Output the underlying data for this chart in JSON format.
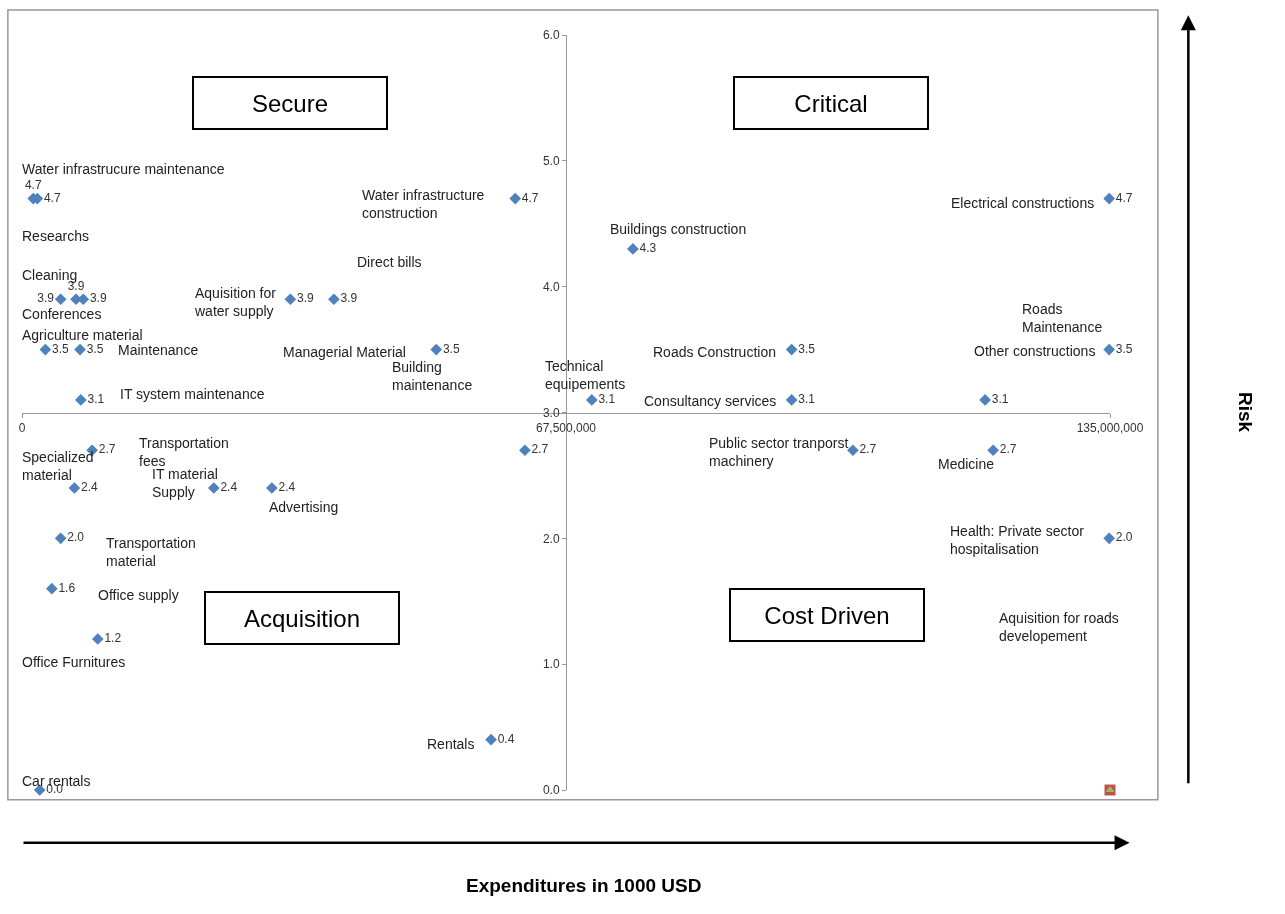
{
  "chart_data": {
    "type": "scatter",
    "xlabel": "Expenditures in 1000 USD",
    "ylabel": "Risk",
    "x": [
      1400000,
      1900000,
      61200000,
      4800000,
      6700000,
      7600000,
      33300000,
      38700000,
      2900000,
      7200000,
      51400000,
      7300000,
      8700000,
      62400000,
      6500000,
      23800000,
      31000000,
      4800000,
      3700000,
      9400000,
      58200000,
      2200000,
      75800000,
      95500000,
      134900000,
      134900000,
      119500000,
      70700000,
      95500000,
      103100000,
      120500000,
      134900000,
      135000000
    ],
    "series": [
      {
        "color": "#4f81bd",
        "marker": "diamond",
        "values": [
          4.7,
          4.7,
          4.7,
          3.9,
          3.9,
          3.9,
          3.9,
          3.9,
          3.5,
          3.5,
          3.5,
          3.1,
          2.7,
          2.7,
          2.4,
          2.4,
          2.4,
          2.0,
          1.6,
          1.2,
          0.4,
          0.0,
          4.3,
          3.5,
          4.7,
          3.5,
          3.1,
          3.1,
          3.1,
          2.7,
          2.7,
          2.0,
          null
        ],
        "value_labels": [
          "4.7",
          "4.7",
          "4.7",
          "3.9",
          "3.9",
          "3.9",
          "3.9",
          "3.9",
          "3.5",
          "3.5",
          "3.5",
          "3.1",
          "2.7",
          "2.7",
          "2.4",
          "2.4",
          "2.4",
          "2.0",
          "1.6",
          "1.2",
          "0.4",
          "0.0",
          "4.3",
          "3.5",
          "4.7",
          "3.5",
          "3.1",
          "3.1",
          "3.1",
          "2.7",
          "2.7",
          "2.0",
          null
        ]
      },
      {
        "color": "#c0504d",
        "marker": "square",
        "values": [
          null,
          null,
          null,
          null,
          null,
          null,
          null,
          null,
          null,
          null,
          null,
          null,
          null,
          null,
          null,
          null,
          null,
          null,
          null,
          null,
          null,
          null,
          null,
          null,
          null,
          null,
          null,
          null,
          null,
          null,
          null,
          null,
          0.0
        ]
      },
      {
        "color": "#9bbb59",
        "marker": "triangle",
        "values": [
          null,
          null,
          null,
          null,
          null,
          null,
          null,
          null,
          null,
          null,
          null,
          null,
          null,
          null,
          null,
          null,
          null,
          null,
          null,
          null,
          null,
          null,
          null,
          null,
          null,
          null,
          null,
          null,
          null,
          null,
          null,
          null,
          0.0
        ]
      }
    ],
    "xlim": [
      0,
      135000000
    ],
    "xticks": [
      0,
      {
        "value": 67500000,
        "label": "67,500,000"
      },
      {
        "value": 135000000,
        "label": "135,000,000"
      }
    ],
    "ylim": [
      0,
      6
    ],
    "yticks": [
      {
        "value": 0,
        "label": "0.0"
      },
      {
        "value": 1,
        "label": "1.0"
      },
      {
        "value": 2,
        "label": "2.0"
      },
      {
        "value": 3,
        "label": "3.0"
      },
      {
        "value": 4,
        "label": "4.0"
      },
      {
        "value": 5,
        "label": "5.0"
      },
      {
        "value": 6,
        "label": "6.0"
      }
    ],
    "annotations": [
      {
        "text": "Water infrastrucure maintenance",
        "x": 1400000,
        "y": 4.7
      },
      {
        "text": "Researchs",
        "x": 1900000,
        "y": 4.7
      },
      {
        "text": "Water infrastructure\nconstruction",
        "x": 61200000,
        "y": 4.7
      },
      {
        "text": "Cleaning",
        "x": 4800000,
        "y": 3.9
      },
      {
        "text": "Conferences",
        "x": 6700000,
        "y": 3.9
      },
      {
        "text": "Aquisition for\nwater supply",
        "x": 33300000,
        "y": 3.9
      },
      {
        "text": "Direct bills",
        "x": 38700000,
        "y": 3.9
      },
      {
        "text": "Agriculture material",
        "x": 2900000,
        "y": 3.5
      },
      {
        "text": "Maintenance",
        "x": 7200000,
        "y": 3.5
      },
      {
        "text": "Managerial Material",
        "x": 51400000,
        "y": 3.5
      },
      "IT system maintenance",
      "Transportation\nfees",
      "Building\nmaintenance",
      {
        "text": "Specialized\nmaterial",
        "x": 6500000,
        "y": 2.4
      },
      {
        "text": "IT material\nSupply",
        "x": 23800000,
        "y": 2.4
      },
      {
        "text": "Advertising",
        "x": 31000000,
        "y": 2.4
      },
      "Transportation\nmaterial",
      "Office supply",
      {
        "text": "Office Furnitures",
        "x": 9400000,
        "y": 1.2
      },
      {
        "text": "Rentals",
        "x": 58200000,
        "y": 0.4
      },
      {
        "text": "Car rentals",
        "x": 2200000,
        "y": 0.0
      },
      {
        "text": "Buildings construction",
        "x": 75800000,
        "y": 4.3
      },
      {
        "text": "Roads Construction",
        "x": 95500000,
        "y": 3.5
      },
      {
        "text": "Electrical constructions",
        "x": 134900000,
        "y": 4.7
      },
      {
        "text": "Other constructions",
        "x": 134900000,
        "y": 3.5
      },
      "Roads\nMaintenance",
      {
        "text": "Technical\nequipements",
        "x": 70700000,
        "y": 3.1
      },
      {
        "text": "Consultancy services",
        "x": 95500000,
        "y": 3.1
      },
      {
        "text": "Public sector tranporst\nmachinery",
        "x": 103100000,
        "y": 2.7
      },
      {
        "text": "Medicine",
        "x": 120500000,
        "y": 2.7
      },
      {
        "text": "Health: Private sector\nhospitalisation",
        "x": 134900000,
        "y": 2.0
      },
      "Aquisition for roads\ndevelopement",
      "Secure",
      "Critical",
      "Acquisition",
      "Cost Driven"
    ]
  }
}
